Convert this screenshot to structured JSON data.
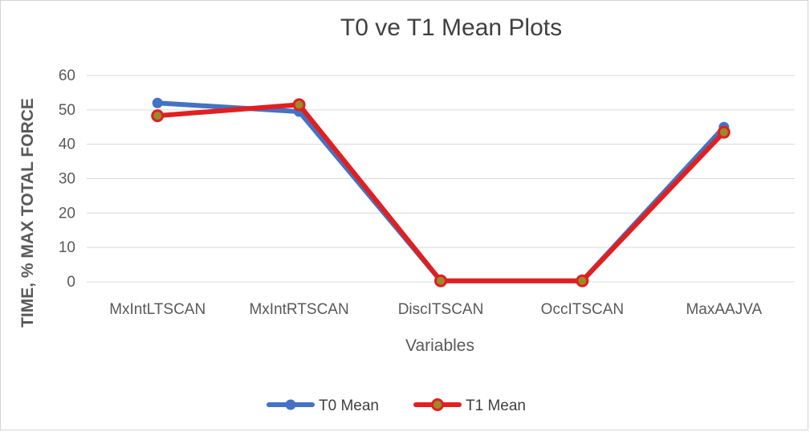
{
  "chart_data": {
    "type": "line",
    "title": "T0 ve T1 Mean Plots",
    "xlabel": "Variables",
    "ylabel": "TIME, % MAX TOTAL FORCE",
    "categories": [
      "MxIntLTSCAN",
      "MxIntRTSCAN",
      "DiscITSCAN",
      "OccITSCAN",
      "MaxAAJVA"
    ],
    "ylim": [
      0,
      60
    ],
    "yticks": [
      "0",
      "10",
      "20",
      "30",
      "40",
      "50",
      "60"
    ],
    "grid": true,
    "legend_position": "bottom",
    "series": [
      {
        "name": "T0 Mean",
        "values": [
          52,
          49.5,
          0.3,
          0.3,
          45
        ],
        "color": "#4472c4",
        "marker_fill": "#4472c4"
      },
      {
        "name": "T1 Mean",
        "values": [
          48.3,
          51.5,
          0.3,
          0.3,
          43.5
        ],
        "color": "#e02020",
        "marker_fill": "#9c8a2a"
      }
    ]
  }
}
